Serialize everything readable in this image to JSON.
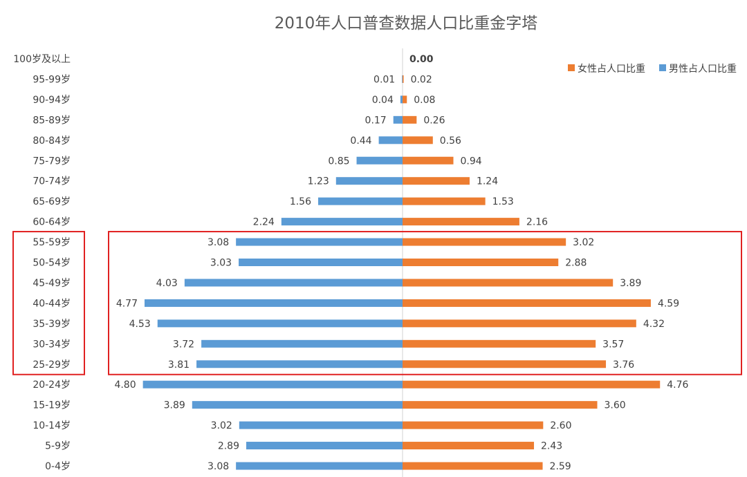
{
  "chart_data": {
    "type": "bar",
    "orientation": "horizontal-population-pyramid",
    "title": "2010年人口普查数据人口比重金字塔",
    "categories": [
      "100岁及以上",
      "95-99岁",
      "90-94岁",
      "85-89岁",
      "80-84岁",
      "75-79岁",
      "70-74岁",
      "65-69岁",
      "60-64岁",
      "55-59岁",
      "50-54岁",
      "45-49岁",
      "40-44岁",
      "35-39岁",
      "30-34岁",
      "25-29岁",
      "20-24岁",
      "15-19岁",
      "10-14岁",
      "5-9岁",
      "0-4岁"
    ],
    "series": [
      {
        "name": "女性占人口比重",
        "color": "#ED7D31",
        "side": "right",
        "values": [
          0.0,
          0.02,
          0.08,
          0.26,
          0.56,
          0.94,
          1.24,
          1.53,
          2.16,
          3.02,
          2.88,
          3.89,
          4.59,
          4.32,
          3.57,
          3.76,
          4.76,
          3.6,
          2.6,
          2.43,
          2.59
        ],
        "labels": [
          "0.00",
          "0.02",
          "0.08",
          "0.26",
          "0.56",
          "0.94",
          "1.24",
          "1.53",
          "2.16",
          "3.02",
          "2.88",
          "3.89",
          "4.59",
          "4.32",
          "3.57",
          "3.76",
          "4.76",
          "3.60",
          "2.60",
          "2.43",
          "2.59"
        ]
      },
      {
        "name": "男性占人口比重",
        "color": "#5B9BD5",
        "side": "left",
        "values": [
          0.0,
          0.01,
          0.04,
          0.17,
          0.44,
          0.85,
          1.23,
          1.56,
          2.24,
          3.08,
          3.03,
          4.03,
          4.77,
          4.53,
          3.72,
          3.81,
          4.8,
          3.89,
          3.02,
          2.89,
          3.08
        ],
        "labels": [
          "",
          "0.01",
          "0.04",
          "0.17",
          "0.44",
          "0.85",
          "1.23",
          "1.56",
          "2.24",
          "3.08",
          "3.03",
          "4.03",
          "4.77",
          "4.53",
          "3.72",
          "3.81",
          "4.80",
          "3.89",
          "3.02",
          "2.89",
          "3.08"
        ]
      }
    ],
    "legend_position": "top-right",
    "grid": false,
    "highlight": {
      "note": "red boxes around 25-29岁 to 55-59岁 rows",
      "from_category": "55-59岁",
      "to_category": "25-29岁",
      "color": "#E02020"
    }
  }
}
